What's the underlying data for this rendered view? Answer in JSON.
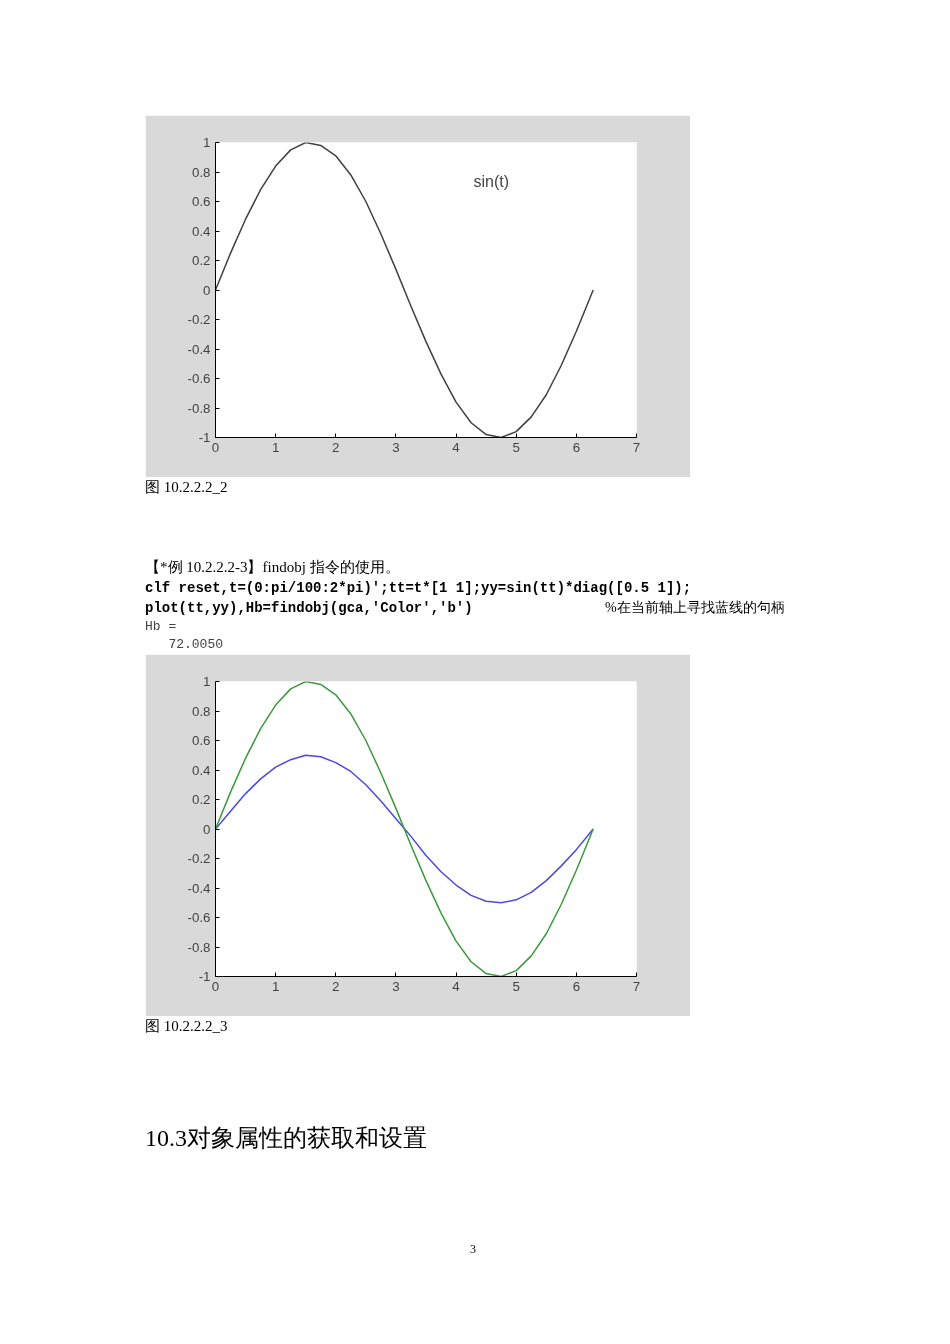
{
  "chart_data": [
    {
      "type": "line",
      "x": [
        0,
        0.25,
        0.5,
        0.75,
        1,
        1.25,
        1.5,
        1.75,
        2,
        2.25,
        2.5,
        2.75,
        3,
        3.25,
        3.5,
        3.75,
        4,
        4.25,
        4.5,
        4.75,
        5,
        5.25,
        5.5,
        5.75,
        6,
        6.28
      ],
      "series": [
        {
          "color": "#404040",
          "values": [
            0,
            0.25,
            0.48,
            0.68,
            0.84,
            0.95,
            1.0,
            0.98,
            0.91,
            0.78,
            0.6,
            0.38,
            0.14,
            -0.11,
            -0.35,
            -0.57,
            -0.76,
            -0.9,
            -0.98,
            -1.0,
            -0.96,
            -0.86,
            -0.71,
            -0.51,
            -0.28,
            0
          ]
        }
      ],
      "xlim": [
        0,
        7
      ],
      "xticks": [
        0,
        1,
        2,
        3,
        4,
        5,
        6,
        7
      ],
      "ylim": [
        -1,
        1
      ],
      "yticks": [
        -1,
        -0.8,
        -0.6,
        -0.4,
        -0.2,
        0,
        0.2,
        0.4,
        0.6,
        0.8,
        1
      ],
      "grid": false,
      "annotations": [
        "sin(t)",
        "图 10.2.2.2_2"
      ]
    },
    {
      "type": "line",
      "x": [
        0,
        0.25,
        0.5,
        0.75,
        1,
        1.25,
        1.5,
        1.75,
        2,
        2.25,
        2.5,
        2.75,
        3,
        3.25,
        3.5,
        3.75,
        4,
        4.25,
        4.5,
        4.75,
        5,
        5.25,
        5.5,
        5.75,
        6,
        6.28
      ],
      "series": [
        {
          "color": "#4a4ae0",
          "values": [
            0,
            0.12,
            0.24,
            0.34,
            0.42,
            0.47,
            0.5,
            0.49,
            0.45,
            0.39,
            0.3,
            0.19,
            0.07,
            -0.05,
            -0.18,
            -0.29,
            -0.38,
            -0.45,
            -0.49,
            -0.5,
            -0.48,
            -0.43,
            -0.35,
            -0.25,
            -0.14,
            0
          ]
        },
        {
          "color": "#3c9a3c",
          "values": [
            0,
            0.25,
            0.48,
            0.68,
            0.84,
            0.95,
            1.0,
            0.98,
            0.91,
            0.78,
            0.6,
            0.38,
            0.14,
            -0.11,
            -0.35,
            -0.57,
            -0.76,
            -0.9,
            -0.98,
            -1.0,
            -0.96,
            -0.86,
            -0.71,
            -0.51,
            -0.28,
            0
          ]
        }
      ],
      "xlim": [
        0,
        7
      ],
      "xticks": [
        0,
        1,
        2,
        3,
        4,
        5,
        6,
        7
      ],
      "ylim": [
        -1,
        1
      ],
      "yticks": [
        -1,
        -0.8,
        -0.6,
        -0.4,
        -0.2,
        0,
        0.2,
        0.4,
        0.6,
        0.8,
        1
      ],
      "grid": false,
      "annotations": [
        "【*例 10.2.2.2-3】findobj 指令的使用。",
        "clf reset,t=(0:pi/100:2*pi)';tt=t*[1 1];yy=sin(tt)*diag([0.5 1]);",
        "plot(tt,yy),Hb=findobj(gca,'Color','b')",
        "%在当前轴上寻找蓝线的句柄",
        "Hb =",
        "   72.0050",
        "图 10.2.2.2_3",
        "10.3对象属性的获取和设置",
        "3"
      ]
    }
  ]
}
